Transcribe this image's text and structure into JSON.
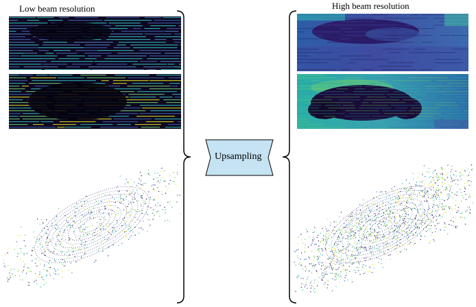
{
  "left_column": {
    "title": "Low beam resolution"
  },
  "right_column": {
    "title": "High beam resolution"
  },
  "module": {
    "label": "Upsampling",
    "fill": "#c5e3f2"
  },
  "colors": {
    "map_dark": "#200c3c",
    "map_blue": "#3d5fa8",
    "map_cyan": "#2fb8b2",
    "map_green": "#6bd06b",
    "map_yellow": "#e0e020",
    "point_dark": "#3b1a63"
  }
}
